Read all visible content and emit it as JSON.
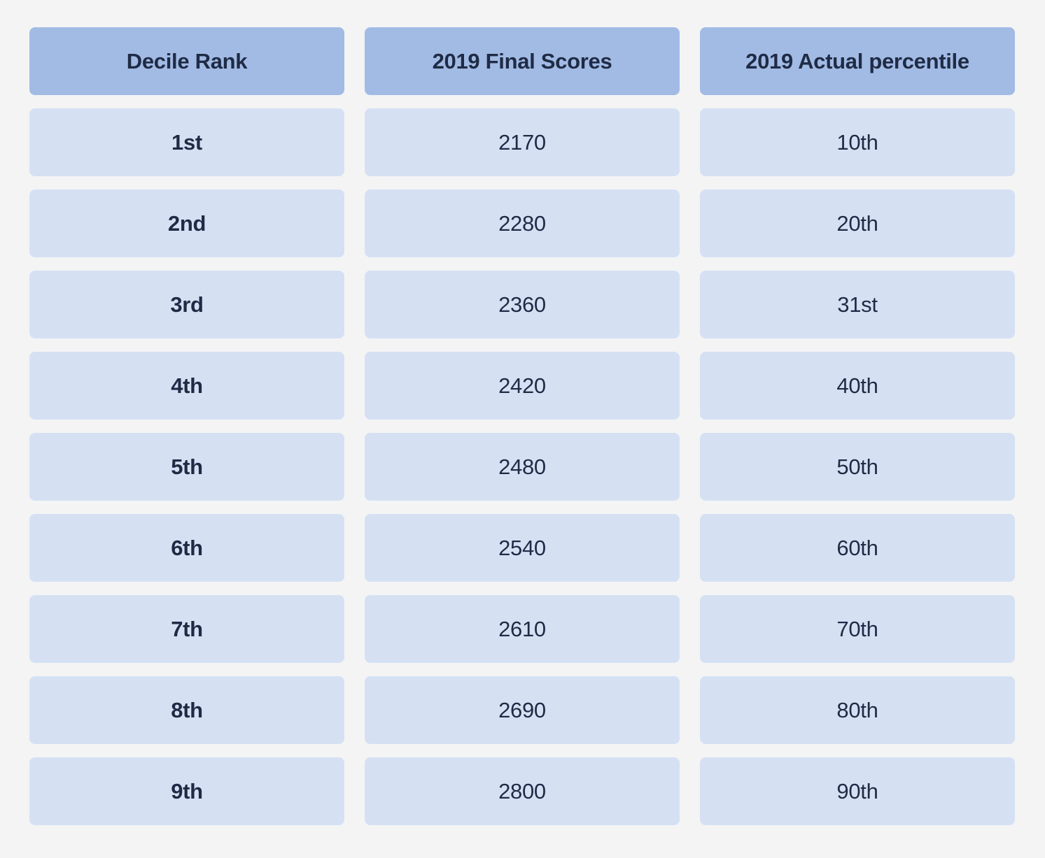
{
  "table": {
    "columns": [
      "Decile Rank",
      "2019 Final Scores",
      "2019 Actual percentile"
    ],
    "rows": [
      [
        "1st",
        "2170",
        "10th"
      ],
      [
        "2nd",
        "2280",
        "20th"
      ],
      [
        "3rd",
        "2360",
        "31st"
      ],
      [
        "4th",
        "2420",
        "40th"
      ],
      [
        "5th",
        "2480",
        "50th"
      ],
      [
        "6th",
        "2540",
        "60th"
      ],
      [
        "7th",
        "2610",
        "70th"
      ],
      [
        "8th",
        "2690",
        "80th"
      ],
      [
        "9th",
        "2800",
        "90th"
      ]
    ]
  },
  "colors": {
    "page_background": "#f4f4f5",
    "header_cell_background": "#a2bbe4",
    "body_cell_background": "#d5e1f3",
    "text": "#1f2b45"
  },
  "chart_data": {
    "type": "table",
    "columns": [
      "Decile Rank",
      "2019 Final Scores",
      "2019 Actual percentile"
    ],
    "rows": [
      [
        "1st",
        "2170",
        "10th"
      ],
      [
        "2nd",
        "2280",
        "20th"
      ],
      [
        "3rd",
        "2360",
        "31st"
      ],
      [
        "4th",
        "2420",
        "40th"
      ],
      [
        "5th",
        "2480",
        "50th"
      ],
      [
        "6th",
        "2540",
        "60th"
      ],
      [
        "7th",
        "2610",
        "70th"
      ],
      [
        "8th",
        "2690",
        "80th"
      ],
      [
        "9th",
        "2800",
        "90th"
      ]
    ],
    "notes": "Decile rank mapped to 2019 final scores and actual percentiles; grid-style table, no axes."
  }
}
